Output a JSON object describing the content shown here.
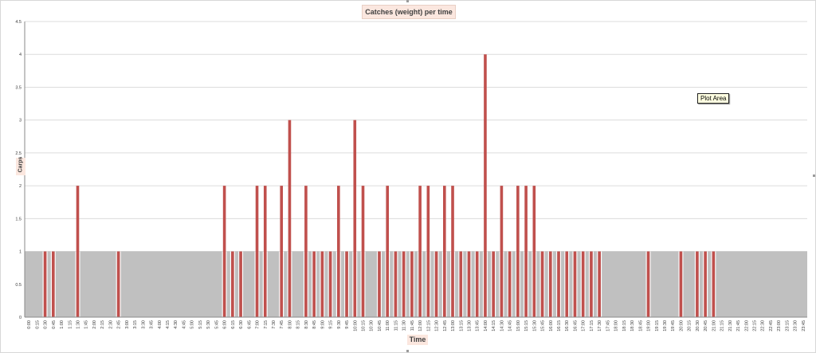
{
  "chart_data": {
    "type": "bar",
    "title": "Catches (weight) per time",
    "xlabel": "Time",
    "ylabel": "Carps",
    "ylim": [
      0,
      4.5
    ],
    "yticks": [
      "0",
      "0.5",
      "1",
      "1.5",
      "2",
      "2.5",
      "3",
      "3.5",
      "4",
      "4.5"
    ],
    "grid": true,
    "legend": "none",
    "categories": [
      "0:00",
      "0:15",
      "0:30",
      "0:45",
      "1:00",
      "1:15",
      "1:30",
      "1:45",
      "2:00",
      "2:15",
      "2:30",
      "2:45",
      "3:00",
      "3:15",
      "3:30",
      "3:45",
      "4:00",
      "4:15",
      "4:30",
      "4:45",
      "5:00",
      "5:15",
      "5:30",
      "5:45",
      "6:00",
      "6:15",
      "6:30",
      "6:45",
      "7:00",
      "7:15",
      "7:30",
      "7:45",
      "8:00",
      "8:15",
      "8:30",
      "8:45",
      "9:00",
      "9:15",
      "9:30",
      "9:45",
      "10:00",
      "10:15",
      "10:30",
      "10:45",
      "11:00",
      "11:15",
      "11:30",
      "11:45",
      "12:00",
      "12:15",
      "12:30",
      "12:45",
      "13:00",
      "13:15",
      "13:30",
      "13:45",
      "14:00",
      "14:15",
      "14:30",
      "14:45",
      "15:00",
      "15:15",
      "15:30",
      "15:45",
      "16:00",
      "16:15",
      "16:30",
      "16:45",
      "17:00",
      "17:15",
      "17:30",
      "17:45",
      "18:00",
      "18:15",
      "18:30",
      "18:45",
      "19:00",
      "19:15",
      "19:30",
      "19:45",
      "20:00",
      "20:15",
      "20:30",
      "20:45",
      "21:00",
      "21:15",
      "21:30",
      "21:45",
      "22:00",
      "22:15",
      "22:30",
      "22:45",
      "23:00",
      "23:15",
      "23:30",
      "23:45"
    ],
    "series": [
      {
        "type": "area",
        "color": "#c0c0c0",
        "values": [
          1,
          1,
          1,
          1,
          1,
          1,
          1,
          1,
          1,
          1,
          1,
          1,
          1,
          1,
          1,
          1,
          1,
          1,
          1,
          1,
          1,
          1,
          1,
          1,
          1,
          1,
          1,
          1,
          1,
          1,
          1,
          1,
          1,
          1,
          1,
          1,
          1,
          1,
          1,
          1,
          1,
          1,
          1,
          1,
          1,
          1,
          1,
          1,
          1,
          1,
          1,
          1,
          1,
          1,
          1,
          1,
          1,
          1,
          1,
          1,
          1,
          1,
          1,
          1,
          1,
          1,
          1,
          1,
          1,
          1,
          1,
          1,
          1,
          1,
          1,
          1,
          1,
          1,
          1,
          1,
          1,
          1,
          1,
          1,
          1,
          1,
          1,
          1,
          1,
          1,
          1,
          1,
          1,
          1,
          1,
          1
        ]
      },
      {
        "type": "bar",
        "color": "#c0504d",
        "points": [
          {
            "x": "0:30",
            "y": 1
          },
          {
            "x": "0:45",
            "y": 1
          },
          {
            "x": "1:30",
            "y": 2
          },
          {
            "x": "2:45",
            "y": 1
          },
          {
            "x": "6:00",
            "y": 2
          },
          {
            "x": "6:15",
            "y": 1
          },
          {
            "x": "6:30",
            "y": 1
          },
          {
            "x": "7:00",
            "y": 2
          },
          {
            "x": "7:15",
            "y": 2
          },
          {
            "x": "7:45",
            "y": 2
          },
          {
            "x": "8:00",
            "y": 3
          },
          {
            "x": "8:30",
            "y": 2
          },
          {
            "x": "8:45",
            "y": 1
          },
          {
            "x": "9:00",
            "y": 1
          },
          {
            "x": "9:15",
            "y": 1
          },
          {
            "x": "9:30",
            "y": 2
          },
          {
            "x": "9:45",
            "y": 1
          },
          {
            "x": "10:00",
            "y": 3
          },
          {
            "x": "10:15",
            "y": 2
          },
          {
            "x": "10:45",
            "y": 1
          },
          {
            "x": "11:00",
            "y": 2
          },
          {
            "x": "11:15",
            "y": 1
          },
          {
            "x": "11:30",
            "y": 1
          },
          {
            "x": "11:45",
            "y": 1
          },
          {
            "x": "12:00",
            "y": 2
          },
          {
            "x": "12:15",
            "y": 2
          },
          {
            "x": "12:30",
            "y": 1
          },
          {
            "x": "12:45",
            "y": 2
          },
          {
            "x": "13:00",
            "y": 2
          },
          {
            "x": "13:15",
            "y": 1
          },
          {
            "x": "13:30",
            "y": 1
          },
          {
            "x": "13:45",
            "y": 1
          },
          {
            "x": "14:00",
            "y": 4
          },
          {
            "x": "14:15",
            "y": 1
          },
          {
            "x": "14:30",
            "y": 2
          },
          {
            "x": "14:45",
            "y": 1
          },
          {
            "x": "15:00",
            "y": 2
          },
          {
            "x": "15:15",
            "y": 2
          },
          {
            "x": "15:30",
            "y": 2
          },
          {
            "x": "15:45",
            "y": 1
          },
          {
            "x": "16:00",
            "y": 1
          },
          {
            "x": "16:15",
            "y": 1
          },
          {
            "x": "16:30",
            "y": 1
          },
          {
            "x": "16:45",
            "y": 1
          },
          {
            "x": "17:00",
            "y": 1
          },
          {
            "x": "17:15",
            "y": 1
          },
          {
            "x": "17:30",
            "y": 1
          },
          {
            "x": "19:00",
            "y": 1
          },
          {
            "x": "20:00",
            "y": 1
          },
          {
            "x": "20:30",
            "y": 1
          },
          {
            "x": "20:45",
            "y": 1
          },
          {
            "x": "21:00",
            "y": 1
          }
        ]
      }
    ]
  },
  "tooltip": "Plot Area"
}
